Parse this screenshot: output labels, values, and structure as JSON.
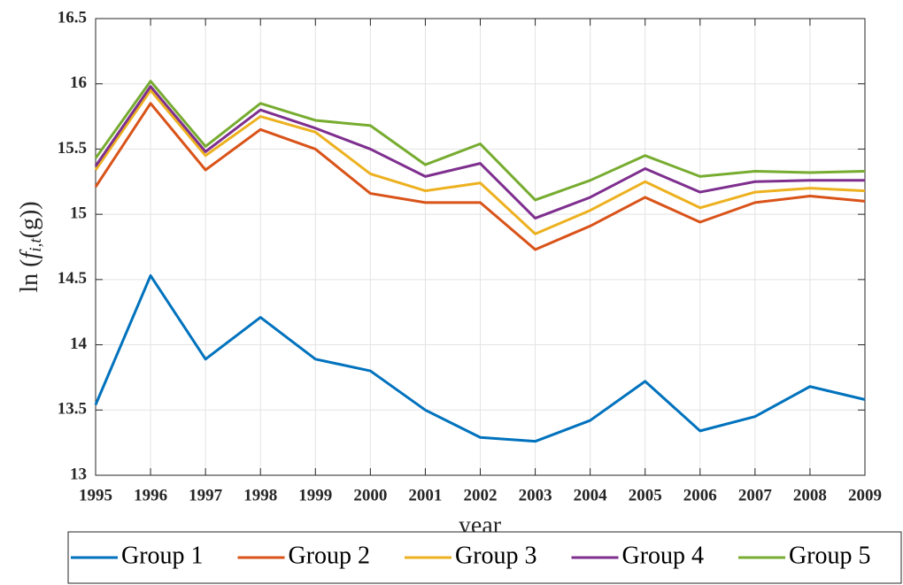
{
  "chart_data": {
    "type": "line",
    "x_label": "year",
    "y_label": {
      "prefix": "ln (",
      "f": "f",
      "sub": "i,t",
      "suffix": "(g))"
    },
    "x": [
      1995,
      1996,
      1997,
      1998,
      1999,
      2000,
      2001,
      2002,
      2003,
      2004,
      2005,
      2006,
      2007,
      2008,
      2009
    ],
    "xlim": [
      1995,
      2009
    ],
    "xticks": [
      1995,
      1996,
      1997,
      1998,
      1999,
      2000,
      2001,
      2002,
      2003,
      2004,
      2005,
      2006,
      2007,
      2008,
      2009
    ],
    "ylim": [
      13,
      16.5
    ],
    "yticks": [
      13,
      13.5,
      14,
      14.5,
      15,
      15.5,
      16,
      16.5
    ],
    "grid": true,
    "legend": "bottom",
    "series": [
      {
        "name": "Group 1",
        "color": "#0072bd",
        "values": [
          13.54,
          14.53,
          13.89,
          14.21,
          13.89,
          13.8,
          13.5,
          13.29,
          13.26,
          13.42,
          13.72,
          13.34,
          13.45,
          13.68,
          13.58
        ]
      },
      {
        "name": "Group 2",
        "color": "#d95319",
        "values": [
          15.21,
          15.85,
          15.34,
          15.65,
          15.5,
          15.16,
          15.09,
          15.09,
          14.73,
          14.91,
          15.13,
          14.94,
          15.09,
          15.14,
          15.1
        ]
      },
      {
        "name": "Group 3",
        "color": "#edb120",
        "values": [
          15.34,
          15.95,
          15.45,
          15.75,
          15.63,
          15.31,
          15.18,
          15.24,
          14.85,
          15.03,
          15.25,
          15.05,
          15.17,
          15.2,
          15.18
        ]
      },
      {
        "name": "Group 4",
        "color": "#7e2f8e",
        "values": [
          15.37,
          15.98,
          15.48,
          15.8,
          15.66,
          15.5,
          15.29,
          15.39,
          14.97,
          15.13,
          15.35,
          15.17,
          15.25,
          15.26,
          15.26
        ]
      },
      {
        "name": "Group 5",
        "color": "#77ac30",
        "values": [
          15.43,
          16.02,
          15.52,
          15.85,
          15.72,
          15.68,
          15.38,
          15.54,
          15.11,
          15.26,
          15.45,
          15.29,
          15.33,
          15.32,
          15.33
        ]
      }
    ]
  }
}
